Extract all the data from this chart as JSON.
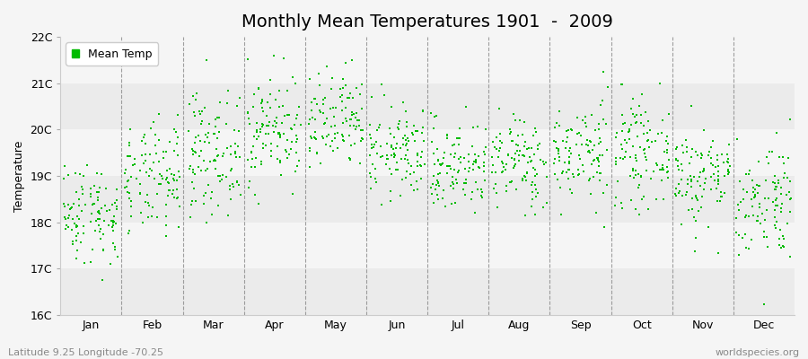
{
  "title": "Monthly Mean Temperatures 1901  -  2009",
  "ylabel": "Temperature",
  "ylim": [
    16,
    22
  ],
  "yticks": [
    16,
    17,
    18,
    19,
    20,
    21,
    22
  ],
  "ytick_labels": [
    "16C",
    "17C",
    "18C",
    "19C",
    "20C",
    "21C",
    "22C"
  ],
  "month_labels": [
    "Jan",
    "Feb",
    "Mar",
    "Apr",
    "May",
    "Jun",
    "Jul",
    "Aug",
    "Sep",
    "Oct",
    "Nov",
    "Dec"
  ],
  "dot_color": "#00bb00",
  "bg_color": "#f5f5f5",
  "hband_colors": [
    "#ebebeb",
    "#f5f5f5"
  ],
  "legend_label": "Mean Temp",
  "footer_left": "Latitude 9.25 Longitude -70.25",
  "footer_right": "worldspecies.org",
  "n_years": 109,
  "seed": 42,
  "monthly_means": [
    18.2,
    18.9,
    19.5,
    20.0,
    20.1,
    19.5,
    19.2,
    19.3,
    19.5,
    19.5,
    19.0,
    18.5
  ],
  "monthly_stds": [
    0.55,
    0.6,
    0.65,
    0.6,
    0.55,
    0.5,
    0.5,
    0.5,
    0.55,
    0.55,
    0.55,
    0.65
  ],
  "title_fontsize": 14,
  "axis_fontsize": 9,
  "tick_fontsize": 9,
  "footer_fontsize": 8
}
